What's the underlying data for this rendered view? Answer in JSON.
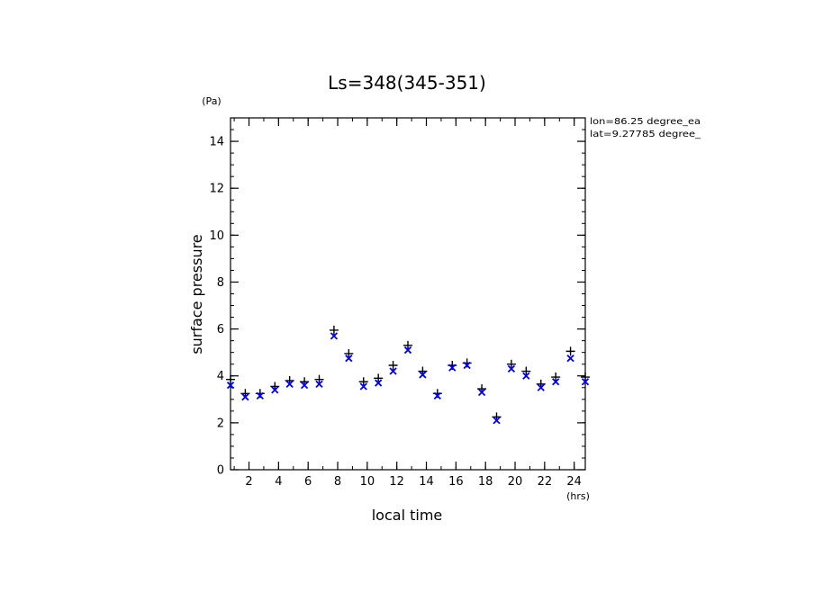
{
  "chart_data": {
    "type": "scatter",
    "title": "Ls=348(345-351)",
    "xlabel": "local time",
    "ylabel": "surface pressure",
    "x_unit": "(hrs)",
    "y_unit": "(Pa)",
    "xlim": [
      0.75,
      24.75
    ],
    "ylim": [
      0,
      15
    ],
    "xticks": [
      2,
      4,
      6,
      8,
      10,
      12,
      14,
      16,
      18,
      20,
      22,
      24
    ],
    "yticks": [
      0,
      2,
      4,
      6,
      8,
      10,
      12,
      14
    ],
    "grid": false,
    "annotations": [
      "lon=86.25 degree_ea",
      "lat=9.27785 degree_"
    ],
    "x": [
      0.75,
      1.75,
      2.75,
      3.75,
      4.75,
      5.75,
      6.75,
      7.75,
      8.75,
      9.75,
      10.75,
      11.75,
      12.75,
      13.75,
      14.75,
      15.75,
      16.75,
      17.75,
      18.75,
      19.75,
      20.75,
      21.75,
      22.75,
      23.75,
      24.75
    ],
    "series": [
      {
        "marker": "plus",
        "color": "#000000",
        "values": [
          3.85,
          3.25,
          3.25,
          3.55,
          3.8,
          3.75,
          3.85,
          5.95,
          4.95,
          3.75,
          3.9,
          4.45,
          5.3,
          4.2,
          3.25,
          4.45,
          4.55,
          3.45,
          2.25,
          4.5,
          4.2,
          3.65,
          3.95,
          5.05,
          3.95
        ]
      },
      {
        "marker": "cross",
        "color": "#0000ee",
        "values": [
          3.6,
          3.1,
          3.15,
          3.4,
          3.65,
          3.6,
          3.65,
          5.7,
          4.75,
          3.55,
          3.7,
          4.2,
          5.1,
          4.05,
          3.15,
          4.35,
          4.45,
          3.3,
          2.1,
          4.3,
          4.0,
          3.5,
          3.75,
          4.75,
          3.75
        ]
      }
    ]
  }
}
